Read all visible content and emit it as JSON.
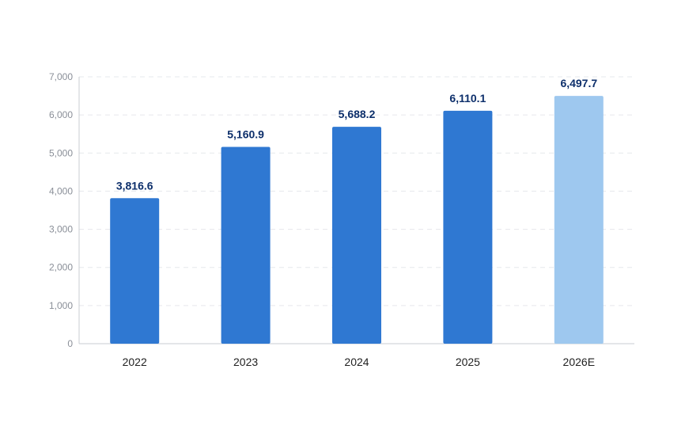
{
  "chart_data": {
    "type": "bar",
    "title": "",
    "xlabel": "",
    "ylabel": "",
    "categories": [
      "2022",
      "2023",
      "2024",
      "2025",
      "2026E"
    ],
    "values": [
      3816.6,
      5160.9,
      5688.2,
      6110.1,
      6497.7
    ],
    "value_labels": [
      "3,816.6",
      "5,160.9",
      "5,688.2",
      "6,110.1",
      "6,497.7"
    ],
    "estimated": [
      false,
      false,
      false,
      false,
      true
    ],
    "ylim": [
      0,
      7000
    ],
    "yticks": [
      0,
      1000,
      2000,
      3000,
      4000,
      5000,
      6000,
      7000
    ],
    "ytick_labels": [
      "0",
      "1,000",
      "2,000",
      "3,000",
      "4,000",
      "5,000",
      "6,000",
      "7,000"
    ],
    "grid": true,
    "legend": "none",
    "colors": {
      "actual": "#2f78d2",
      "estimate": "#9ec8ef",
      "data_label": "#0d2f6b"
    }
  }
}
